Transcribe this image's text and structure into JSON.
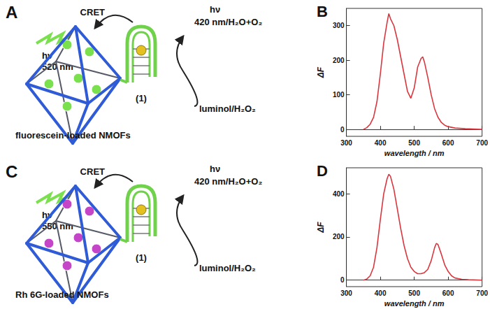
{
  "chart_data": [
    {
      "type": "line",
      "title": "B",
      "x_label": "wavelength / nm",
      "y_label": "ΔF",
      "x": [
        350,
        360,
        370,
        380,
        390,
        400,
        410,
        420,
        425,
        430,
        440,
        450,
        460,
        470,
        480,
        490,
        500,
        510,
        520,
        525,
        530,
        540,
        550,
        560,
        570,
        580,
        590,
        600,
        620,
        650,
        700
      ],
      "values": [
        0,
        5,
        15,
        35,
        80,
        160,
        250,
        310,
        335,
        320,
        300,
        260,
        210,
        160,
        110,
        90,
        120,
        180,
        205,
        210,
        195,
        150,
        100,
        60,
        35,
        20,
        12,
        8,
        4,
        2,
        0
      ],
      "color": "#d9363e",
      "xlim": [
        300,
        700
      ],
      "xticks": [
        300,
        400,
        500,
        600,
        700
      ],
      "ylim": [
        -20,
        350
      ],
      "yticks": [
        0,
        100,
        200,
        300
      ],
      "grid": false
    },
    {
      "type": "line",
      "title": "D",
      "x_label": "wavelength / nm",
      "y_label": "ΔF",
      "x": [
        350,
        360,
        370,
        380,
        390,
        400,
        410,
        420,
        425,
        430,
        440,
        450,
        460,
        470,
        480,
        490,
        500,
        510,
        520,
        530,
        540,
        550,
        560,
        565,
        570,
        580,
        590,
        600,
        610,
        620,
        640,
        660,
        700
      ],
      "values": [
        0,
        5,
        20,
        60,
        150,
        280,
        400,
        470,
        490,
        480,
        420,
        330,
        240,
        160,
        100,
        60,
        40,
        30,
        30,
        35,
        50,
        90,
        150,
        170,
        165,
        120,
        70,
        40,
        20,
        10,
        4,
        2,
        0
      ],
      "color": "#d9363e",
      "xlim": [
        300,
        700
      ],
      "xticks": [
        300,
        400,
        500,
        600,
        700
      ],
      "ylim": [
        -30,
        520
      ],
      "yticks": [
        0,
        200,
        400
      ],
      "grid": false
    }
  ],
  "diagrams": [
    {
      "panel": "A",
      "excitation": {
        "symbol": "hν",
        "wavelength": "520 nm"
      },
      "transfer": "CRET",
      "emission": {
        "symbol": "hν",
        "text": "420 nm/H₂O+O₂"
      },
      "linker": "(1)",
      "substrate": "luminol/H₂O₂",
      "caption": "fluorescein-loaded NMOFs",
      "dye_color": "#7be04e"
    },
    {
      "panel": "C",
      "excitation": {
        "symbol": "hν",
        "wavelength": "550 nm"
      },
      "transfer": "CRET",
      "emission": {
        "symbol": "hν",
        "text": "420 nm/H₂O+O₂"
      },
      "linker": "(1)",
      "substrate": "luminol/H₂O₂",
      "caption": "Rh 6G-loaded NMOFs",
      "dye_color": "#c545c8"
    }
  ]
}
